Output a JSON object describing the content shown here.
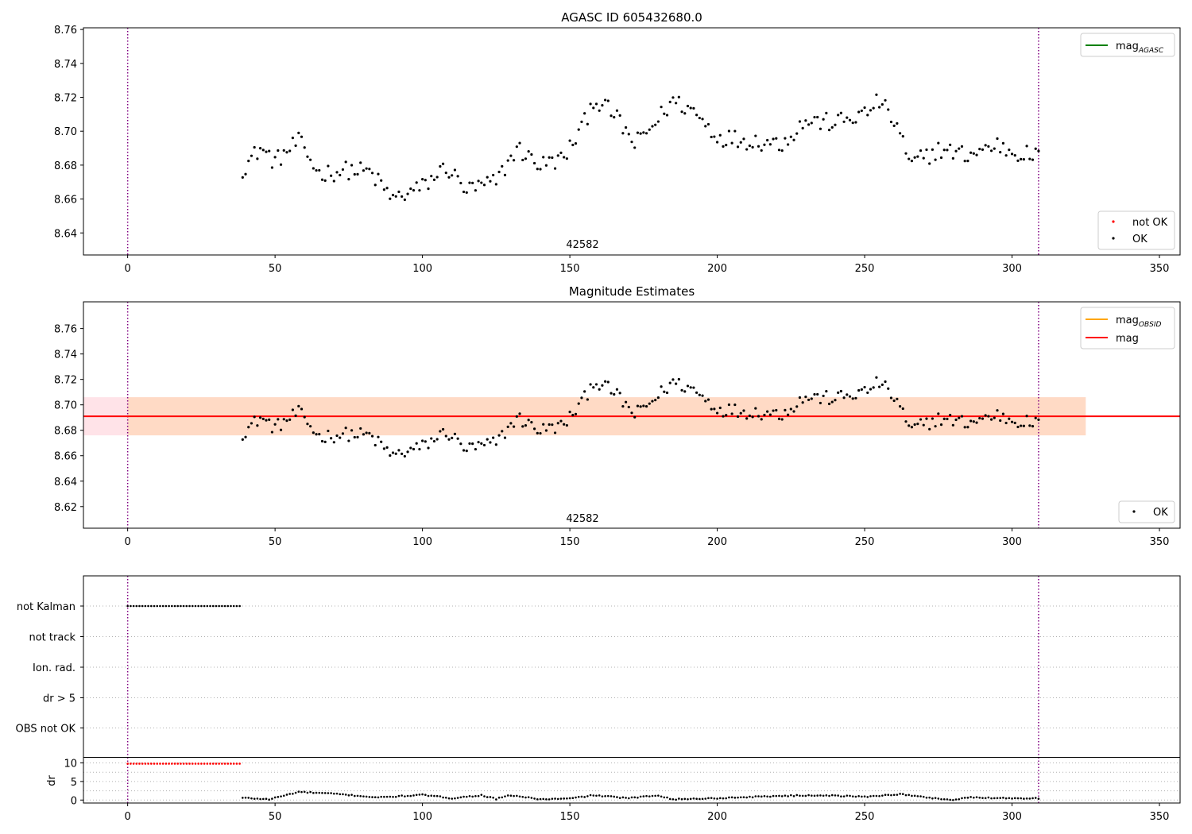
{
  "chart_data": [
    {
      "type": "scatter",
      "title": "AGASC ID 605432680.0",
      "annotation": "42582",
      "xlim": [
        -15,
        357
      ],
      "ylim": [
        8.627,
        8.761
      ],
      "xticks": [
        0,
        50,
        100,
        150,
        200,
        250,
        300,
        350
      ],
      "yticks": [
        8.64,
        8.66,
        8.68,
        8.7,
        8.72,
        8.74,
        8.76
      ],
      "vlines": [
        0,
        309
      ],
      "legend_lines": [
        {
          "label": "mag",
          "sub": "AGASC",
          "color": "#008000"
        }
      ],
      "legend_points": [
        {
          "label": "not OK",
          "color": "#ff0000"
        },
        {
          "label": "OK",
          "color": "#000000"
        }
      ],
      "series": [
        {
          "name": "OK",
          "color": "#000000",
          "x_start": 39,
          "x_end": 309,
          "anchors_x": [
            39,
            45,
            50,
            58,
            65,
            75,
            82,
            90,
            100,
            108,
            115,
            125,
            132,
            140,
            148,
            155,
            158,
            165,
            172,
            178,
            185,
            192,
            200,
            208,
            215,
            222,
            230,
            240,
            250,
            255,
            262,
            265,
            275,
            285,
            295,
            300,
            309
          ],
          "anchors_y": [
            8.678,
            8.69,
            8.682,
            8.694,
            8.675,
            8.677,
            8.676,
            8.66,
            8.667,
            8.679,
            8.665,
            8.67,
            8.69,
            8.68,
            8.684,
            8.705,
            8.719,
            8.71,
            8.692,
            8.703,
            8.718,
            8.712,
            8.697,
            8.695,
            8.694,
            8.693,
            8.706,
            8.705,
            8.71,
            8.718,
            8.7,
            8.68,
            8.689,
            8.686,
            8.692,
            8.688,
            8.685
          ]
        }
      ]
    },
    {
      "type": "scatter",
      "title": "Magnitude Estimates",
      "annotation": "42582",
      "xlim": [
        -15,
        357
      ],
      "ylim": [
        8.603,
        8.781
      ],
      "xticks": [
        0,
        50,
        100,
        150,
        200,
        250,
        300,
        350
      ],
      "yticks": [
        8.62,
        8.64,
        8.66,
        8.68,
        8.7,
        8.72,
        8.74,
        8.76
      ],
      "vlines": [
        0,
        309
      ],
      "mag_line": 8.691,
      "bands": [
        {
          "x": [
            -15,
            325
          ],
          "y": [
            8.676,
            8.706
          ],
          "color": "#ffc0cb"
        },
        {
          "x": [
            0,
            325
          ],
          "y": [
            8.676,
            8.706
          ],
          "color": "#ffa500"
        }
      ],
      "legend_lines": [
        {
          "label": "mag",
          "sub": "OBSID",
          "color": "#ffa500"
        },
        {
          "label": "mag",
          "sub": "",
          "color": "#ff0000"
        }
      ],
      "legend_points": [
        {
          "label": "OK",
          "color": "#000000"
        }
      ]
    },
    {
      "type": "scatter",
      "title": "",
      "categories": [
        "not Kalman",
        "not track",
        "Ion. rad.",
        "dr > 5",
        "OBS not OK"
      ],
      "flagged": {
        "category": "not Kalman",
        "x_start": 0,
        "x_end": 38
      }
    },
    {
      "type": "scatter",
      "ylabel": "dr",
      "xlim": [
        -15,
        357
      ],
      "ylim": [
        -0.8,
        11.5
      ],
      "xticks": [
        0,
        50,
        100,
        150,
        200,
        250,
        300,
        350
      ],
      "yticks": [
        0,
        5,
        10
      ],
      "vlines": [
        0,
        309
      ],
      "not_ok": {
        "x_start": 0,
        "x_end": 38,
        "value": 9.8,
        "color": "#ff0000"
      },
      "ok_anchors_x": [
        39,
        48,
        58,
        70,
        85,
        100,
        110,
        120,
        125,
        130,
        140,
        150,
        158,
        170,
        180,
        185,
        200,
        220,
        235,
        250,
        262,
        270,
        280,
        285,
        300,
        309
      ],
      "ok_anchors_y": [
        0.6,
        0.2,
        2.2,
        1.7,
        0.7,
        1.4,
        0.5,
        1.3,
        0.3,
        1.3,
        0.2,
        0.4,
        1.3,
        0.5,
        1.3,
        0.2,
        0.5,
        1.1,
        1.3,
        0.9,
        1.6,
        0.8,
        0.0,
        0.7,
        0.5,
        0.5
      ]
    }
  ]
}
